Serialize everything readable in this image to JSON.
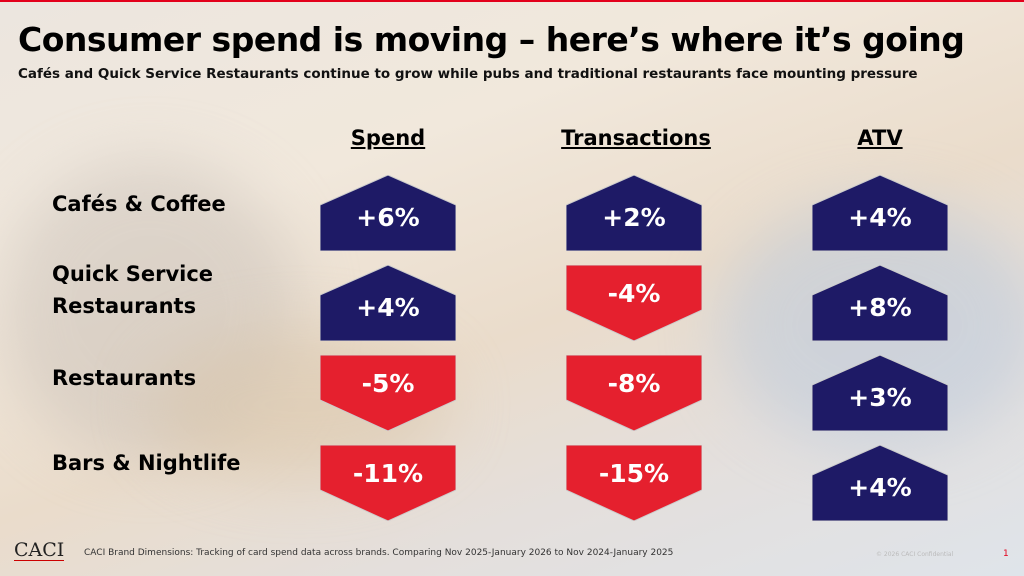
{
  "title": "Consumer spend is moving – here’s where it’s going",
  "subtitle": "Cafés and Quick Service Restaurants continue to grow while pubs and traditional restaurants face mounting pressure",
  "colors": {
    "positive": "#1e1a66",
    "negative": "#e5202e"
  },
  "chart_data": {
    "type": "table",
    "columns": [
      "Spend",
      "Transactions",
      "ATV"
    ],
    "rows": [
      "Cafés & Coffee",
      "Quick Service Restaurants",
      "Restaurants",
      "Bars & Nightlife"
    ],
    "values": [
      [
        6,
        2,
        4
      ],
      [
        4,
        -4,
        8
      ],
      [
        -5,
        -8,
        3
      ],
      [
        -11,
        -15,
        4
      ]
    ],
    "labels": [
      [
        "+6%",
        "+2%",
        "+4%"
      ],
      [
        "+4%",
        "-4%",
        "+8%"
      ],
      [
        "-5%",
        "-8%",
        "+3%"
      ],
      [
        "-11%",
        "-15%",
        "+4%"
      ]
    ]
  },
  "footer": {
    "logo": "CACI",
    "source": "CACI Brand Dimensions: Tracking of card spend data across brands.  Comparing Nov 2025-January 2026 to Nov 2024-January 2025",
    "copyright": "© 2026 CACI Confidential",
    "page": "1"
  }
}
